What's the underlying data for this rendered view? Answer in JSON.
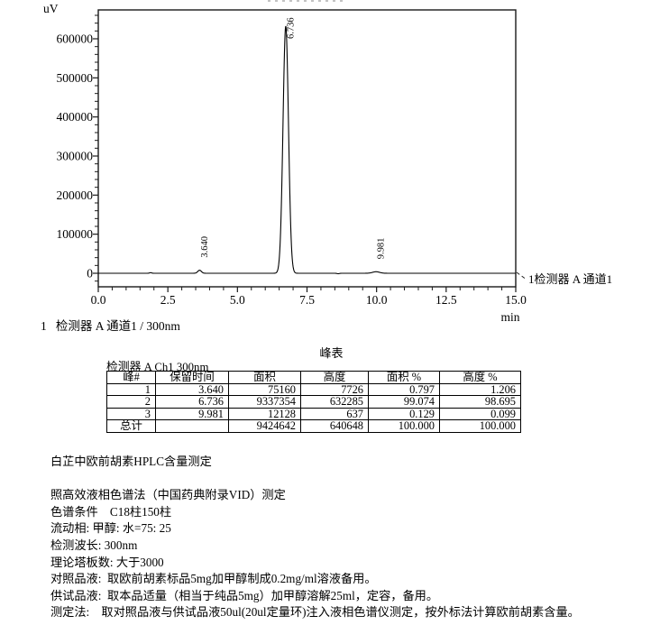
{
  "channel_line": "1   检测器 A 通道1 / 300nm",
  "peak_table": {
    "title": "峰表",
    "subtitle": "检测器 A Ch1 300nm",
    "headers": [
      "峰#",
      "保留时间",
      "面积",
      "高度",
      "面积 %",
      "高度 %"
    ],
    "rows": [
      [
        "1",
        "3.640",
        "75160",
        "7726",
        "0.797",
        "1.206"
      ],
      [
        "2",
        "6.736",
        "9337354",
        "632285",
        "99.074",
        "98.695"
      ],
      [
        "3",
        "9.981",
        "12128",
        "637",
        "0.129",
        "0.099"
      ]
    ],
    "total_row": [
      "总计",
      "",
      "9424642",
      "640648",
      "100.000",
      "100.000"
    ]
  },
  "notes": {
    "lines": [
      "白芷中欧前胡素HPLC含量测定",
      "",
      "照高效液相色谱法（中国药典附录VID）测定",
      "色谱条件    C18柱150柱",
      "流动相: 甲醇: 水=75: 25",
      "检测波长: 300nm",
      "理论塔板数: 大于3000",
      "对照品液:  取欧前胡素标品5mg加甲醇制成0.2mg/ml溶液备用。",
      "供试品液:  取本品适量（相当于纯品5mg）加甲醇溶解25ml，定容，备用。",
      "测定法:    取对照品液与供试品液50ul(20ul定量环)注入液相色谱仪测定，按外标法计算欧前胡素含量。"
    ]
  },
  "chart_data": {
    "type": "line",
    "title": "",
    "ylabel": "uV",
    "xlabel": "min",
    "xlim": [
      0,
      15
    ],
    "ylim": [
      -35000,
      675000
    ],
    "x_tick_labels": [
      "0.0",
      "2.5",
      "5.0",
      "7.5",
      "10.0",
      "12.5",
      "15.0"
    ],
    "x_major_ticks": [
      0,
      2.5,
      5,
      7.5,
      10,
      12.5,
      15
    ],
    "x_minor_step": 0.5,
    "y_major_ticks": [
      0,
      100000,
      200000,
      300000,
      400000,
      500000,
      600000
    ],
    "y_tick_labels": [
      "0",
      "100000",
      "200000",
      "300000",
      "400000",
      "500000",
      "600000"
    ],
    "y_minor_step": 20000,
    "grid": false,
    "line_color": "#000000",
    "annotation": "1检测器 A 通道1",
    "baseline_uv": 0,
    "peaks": [
      {
        "label": "3.640",
        "rt": 3.64,
        "height_uv": 7726,
        "area": 75160
      },
      {
        "label": "6.736",
        "rt": 6.736,
        "height_uv": 632285,
        "area": 9337354
      },
      {
        "label": "9.981",
        "rt": 9.981,
        "height_uv": 637,
        "area": 12128
      }
    ],
    "baseline_blips": [
      {
        "rt": 1.88,
        "height_uv": 1500
      },
      {
        "rt": 8.62,
        "height_uv": -1200
      }
    ]
  }
}
